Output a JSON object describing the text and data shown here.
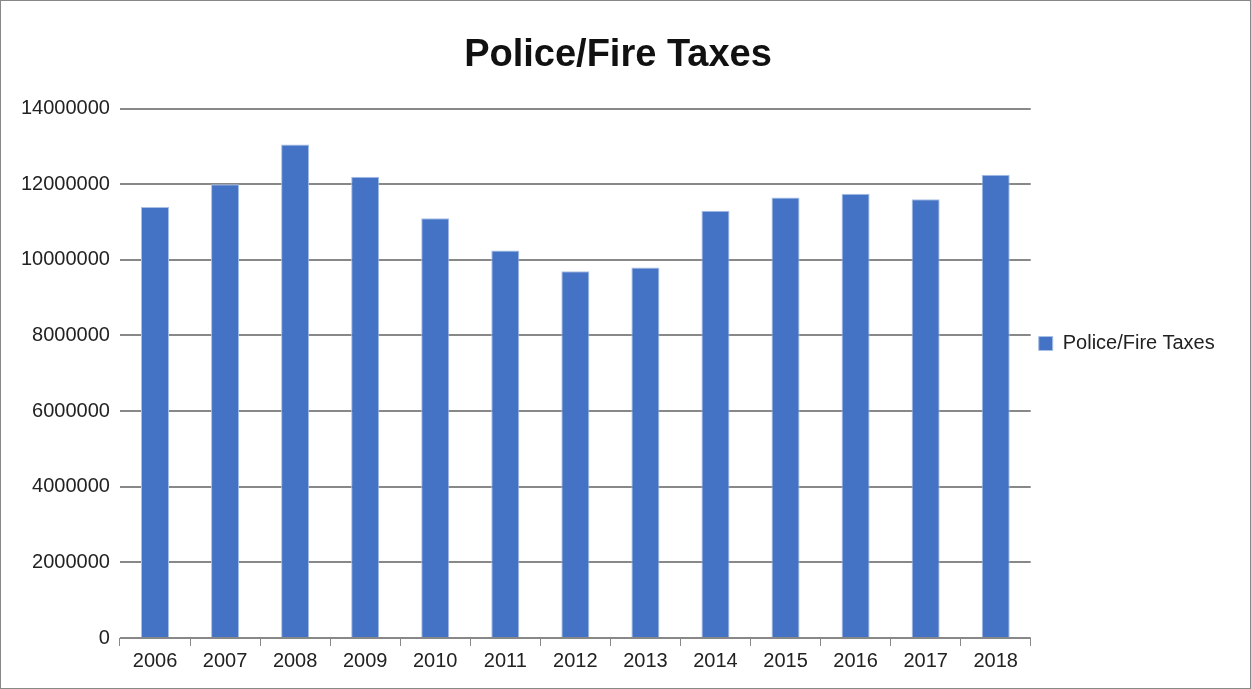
{
  "chart_data": {
    "type": "bar",
    "title": "Police/Fire Taxes",
    "categories": [
      "2006",
      "2007",
      "2008",
      "2009",
      "2010",
      "2011",
      "2012",
      "2013",
      "2014",
      "2015",
      "2016",
      "2017",
      "2018"
    ],
    "series": [
      {
        "name": "Police/Fire Taxes",
        "color": "#4472c4",
        "values": [
          11400000,
          12000000,
          13050000,
          12200000,
          11100000,
          10250000,
          9700000,
          9800000,
          11300000,
          11650000,
          11750000,
          11600000,
          12250000
        ]
      }
    ],
    "ylim": [
      0,
      14000000
    ],
    "yticks": [
      0,
      2000000,
      4000000,
      6000000,
      8000000,
      10000000,
      12000000,
      14000000
    ],
    "grid": "y",
    "legend": "right"
  }
}
